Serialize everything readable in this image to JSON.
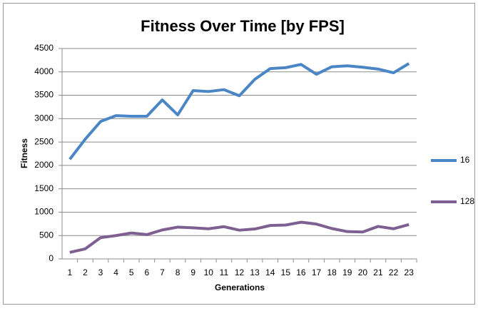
{
  "chart_data": {
    "type": "line",
    "title": "Fitness Over Time [by FPS]",
    "x_label": "Generations",
    "y_label": "Fitness",
    "categories": [
      "1",
      "2",
      "3",
      "4",
      "5",
      "6",
      "7",
      "8",
      "9",
      "10",
      "11",
      "12",
      "13",
      "14",
      "15",
      "16",
      "17",
      "18",
      "19",
      "20",
      "21",
      "22",
      "23"
    ],
    "series": [
      {
        "name": "16",
        "color": "#4a86c5",
        "values": [
          2130,
          2560,
          2940,
          3065,
          3050,
          3050,
          3400,
          3080,
          3600,
          3580,
          3620,
          3490,
          3840,
          4070,
          4090,
          4160,
          3950,
          4110,
          4130,
          4100,
          4060,
          3980,
          4180
        ]
      },
      {
        "name": "128",
        "color": "#7d5f92",
        "values": [
          140,
          215,
          455,
          500,
          555,
          520,
          620,
          680,
          665,
          645,
          690,
          615,
          640,
          715,
          725,
          785,
          745,
          650,
          585,
          575,
          695,
          645,
          735
        ]
      }
    ],
    "ylim": [
      0,
      4500
    ],
    "yticks": [
      0,
      500,
      1000,
      1500,
      2000,
      2500,
      3000,
      3500,
      4000,
      4500
    ],
    "grid": true,
    "legend": "right"
  }
}
